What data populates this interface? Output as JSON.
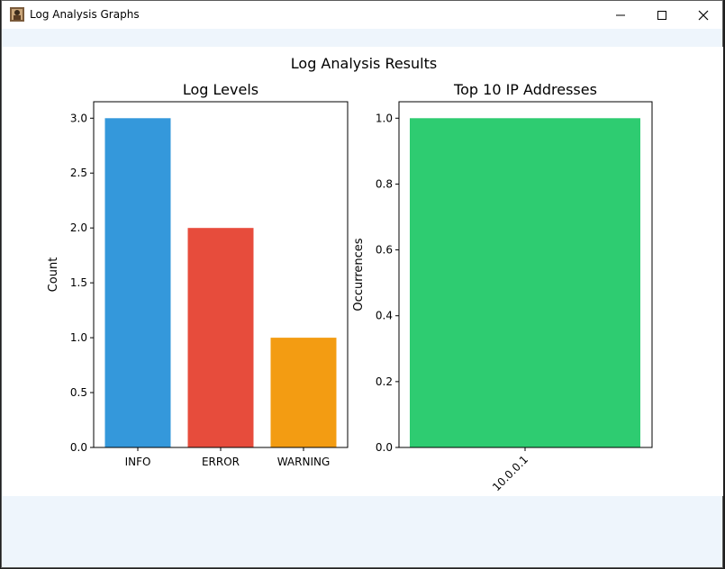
{
  "window": {
    "title": "Log Analysis Graphs",
    "icons": {
      "app": "app-icon",
      "minimize": "minimize-icon",
      "maximize": "maximize-icon",
      "close": "close-icon"
    }
  },
  "figure": {
    "suptitle": "Log Analysis Results"
  },
  "chart_data": [
    {
      "type": "bar",
      "title": "Log Levels",
      "xlabel": "",
      "ylabel": "Count",
      "categories": [
        "INFO",
        "ERROR",
        "WARNING"
      ],
      "values": [
        3,
        2,
        1
      ],
      "colors": [
        "#3498db",
        "#e74c3c",
        "#f39c12"
      ],
      "ylim": [
        0,
        3.15
      ],
      "yticks": [
        "0.0",
        "0.5",
        "1.0",
        "1.5",
        "2.0",
        "2.5",
        "3.0"
      ],
      "ytick_values": [
        0,
        0.5,
        1.0,
        1.5,
        2.0,
        2.5,
        3.0
      ],
      "grid": false
    },
    {
      "type": "bar",
      "title": "Top 10 IP Addresses",
      "xlabel": "",
      "ylabel": "Occurrences",
      "categories": [
        "10.0.0.1"
      ],
      "values": [
        1
      ],
      "colors": [
        "#2ecc71"
      ],
      "ylim": [
        0,
        1.05
      ],
      "yticks": [
        "0.0",
        "0.2",
        "0.4",
        "0.6",
        "0.8",
        "1.0"
      ],
      "ytick_values": [
        0,
        0.2,
        0.4,
        0.6,
        0.8,
        1.0
      ],
      "xtick_rotation": 45,
      "grid": false
    }
  ]
}
